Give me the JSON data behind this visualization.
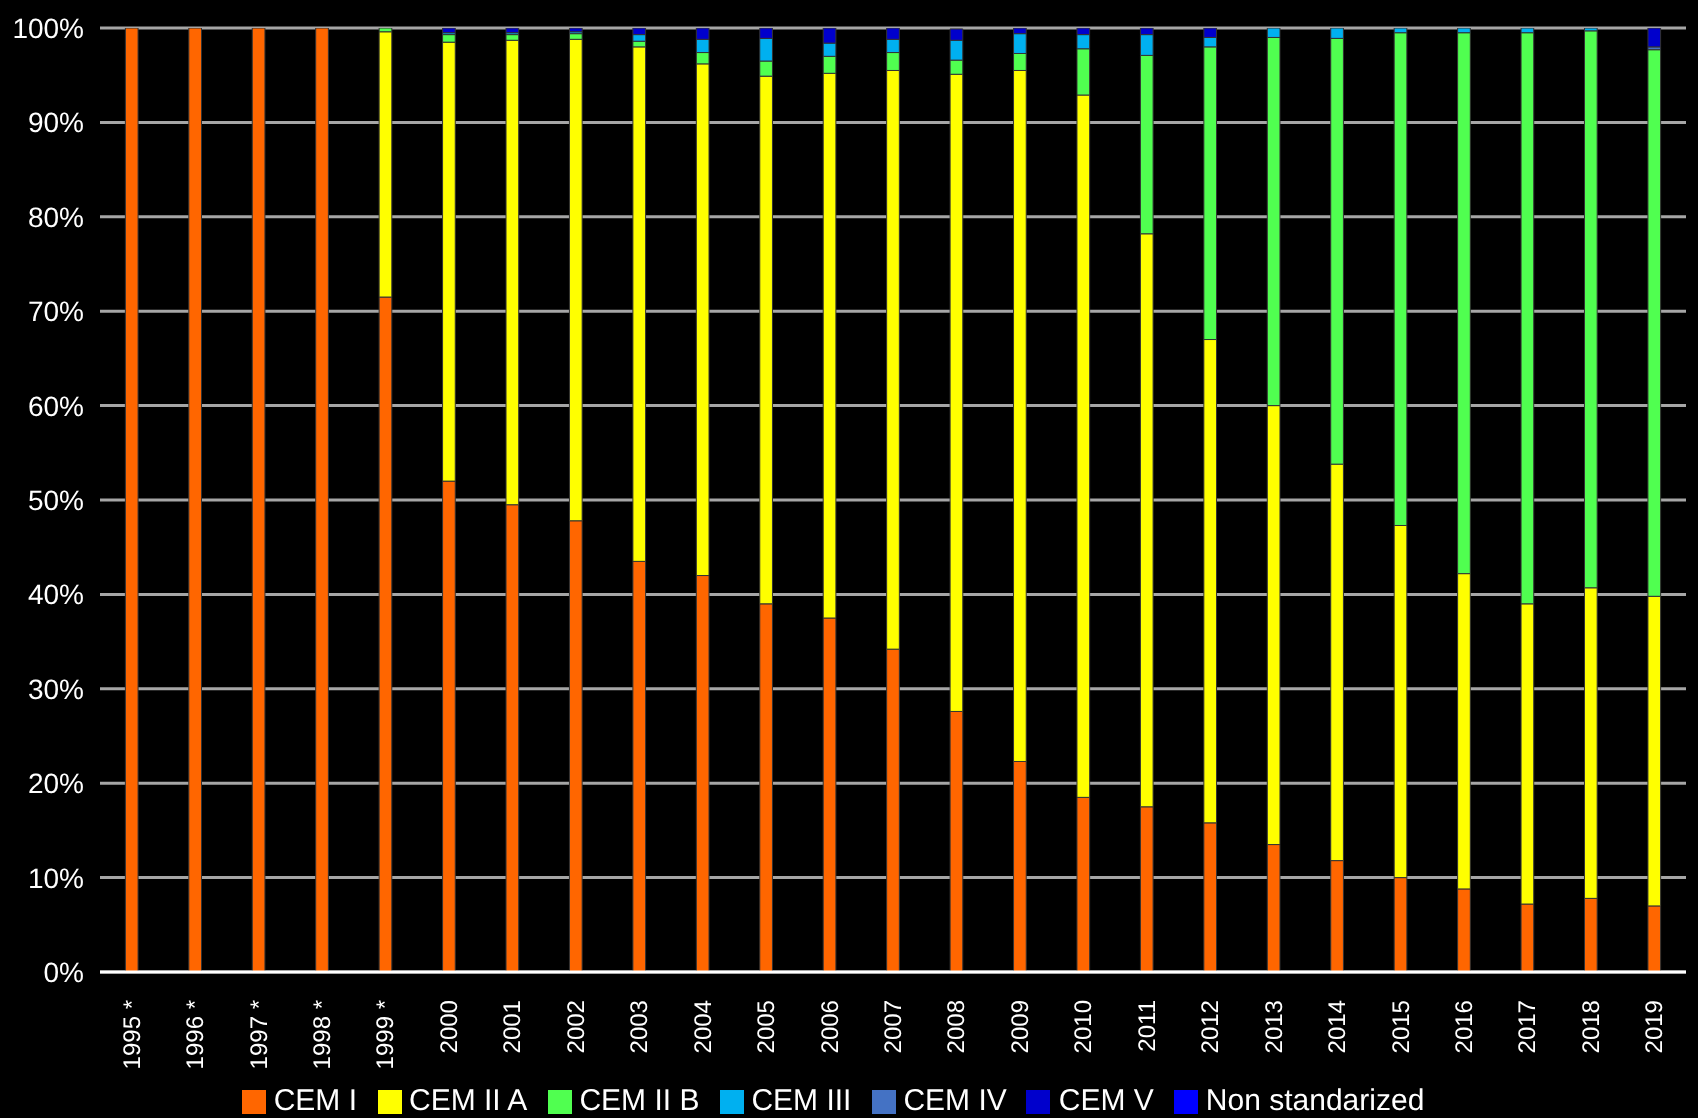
{
  "chart_data": {
    "type": "bar",
    "stacked": true,
    "categories": [
      "1995 *",
      "1996 *",
      "1997 *",
      "1998 *",
      "1999 *",
      "2000",
      "2001",
      "2002",
      "2003",
      "2004",
      "2005",
      "2006",
      "2007",
      "2008",
      "2009",
      "2010",
      "2011",
      "2012",
      "2013",
      "2014",
      "2015",
      "2016",
      "2017",
      "2018",
      "2019"
    ],
    "series": [
      {
        "name": "CEM I",
        "color": "#ff6600",
        "values": [
          100,
          100,
          100,
          100,
          71.5,
          52,
          49.5,
          47.8,
          43.5,
          42,
          39,
          37.5,
          34.2,
          27.6,
          22.3,
          18.5,
          17.5,
          15.8,
          13.5,
          11.8,
          10,
          8.8,
          7.2,
          7.8,
          7
        ]
      },
      {
        "name": "CEM II A",
        "color": "#ffff00",
        "values": [
          0,
          0,
          0,
          0,
          28.1,
          46.5,
          49.2,
          51,
          54.5,
          54.2,
          55.9,
          57.7,
          61.3,
          67.5,
          73.2,
          74.4,
          60.7,
          51.2,
          46.5,
          42,
          37.3,
          33.4,
          31.8,
          32.9,
          32.8
        ]
      },
      {
        "name": "CEM II B",
        "color": "#50ff50",
        "values": [
          0,
          0,
          0,
          0,
          0.4,
          0.8,
          0.6,
          0.6,
          0.6,
          1.2,
          1.6,
          1.8,
          1.9,
          1.5,
          1.8,
          4.9,
          18.9,
          31,
          39,
          45.1,
          52.2,
          57.3,
          60.5,
          59,
          57.9
        ]
      },
      {
        "name": "CEM III",
        "color": "#00b0f0",
        "values": [
          0,
          0,
          0,
          0,
          0,
          0.2,
          0.2,
          0.2,
          0.7,
          1.4,
          2.4,
          1.4,
          1.4,
          2.1,
          2.1,
          1.5,
          2.2,
          1,
          1,
          1.1,
          0.5,
          0.5,
          0.5,
          0.3,
          0
        ]
      },
      {
        "name": "CEM IV",
        "color": "#4472c4",
        "values": [
          0,
          0,
          0,
          0,
          0,
          0,
          0,
          0,
          0,
          0,
          0,
          0,
          0,
          0,
          0,
          0,
          0,
          0,
          0,
          0,
          0,
          0,
          0,
          0,
          0.3
        ]
      },
      {
        "name": "CEM V",
        "color": "#0000cc",
        "values": [
          0,
          0,
          0,
          0,
          0,
          0.5,
          0.5,
          0.5,
          0.7,
          1.2,
          1.1,
          1.6,
          1.2,
          1.2,
          0.6,
          0.7,
          0.7,
          1,
          0,
          0,
          0,
          0,
          0,
          0,
          2
        ]
      },
      {
        "name": "Non standarized",
        "color": "#0000ff",
        "values": [
          0,
          0,
          0,
          0,
          0,
          0,
          0,
          0,
          0,
          0,
          0,
          0,
          0,
          0,
          0,
          0,
          0,
          0,
          0,
          0,
          0,
          0,
          0,
          0,
          0
        ]
      }
    ],
    "ylim": [
      0,
      100
    ],
    "yticks": [
      {
        "value": 0,
        "label": "0%"
      },
      {
        "value": 10,
        "label": "10%"
      },
      {
        "value": 20,
        "label": "20%"
      },
      {
        "value": 30,
        "label": "30%"
      },
      {
        "value": 40,
        "label": "40%"
      },
      {
        "value": 50,
        "label": "50%"
      },
      {
        "value": 60,
        "label": "60%"
      },
      {
        "value": 70,
        "label": "70%"
      },
      {
        "value": 80,
        "label": "80%"
      },
      {
        "value": 90,
        "label": "90%"
      },
      {
        "value": 100,
        "label": "100%"
      }
    ],
    "grid": "y",
    "legend": "bottom"
  }
}
